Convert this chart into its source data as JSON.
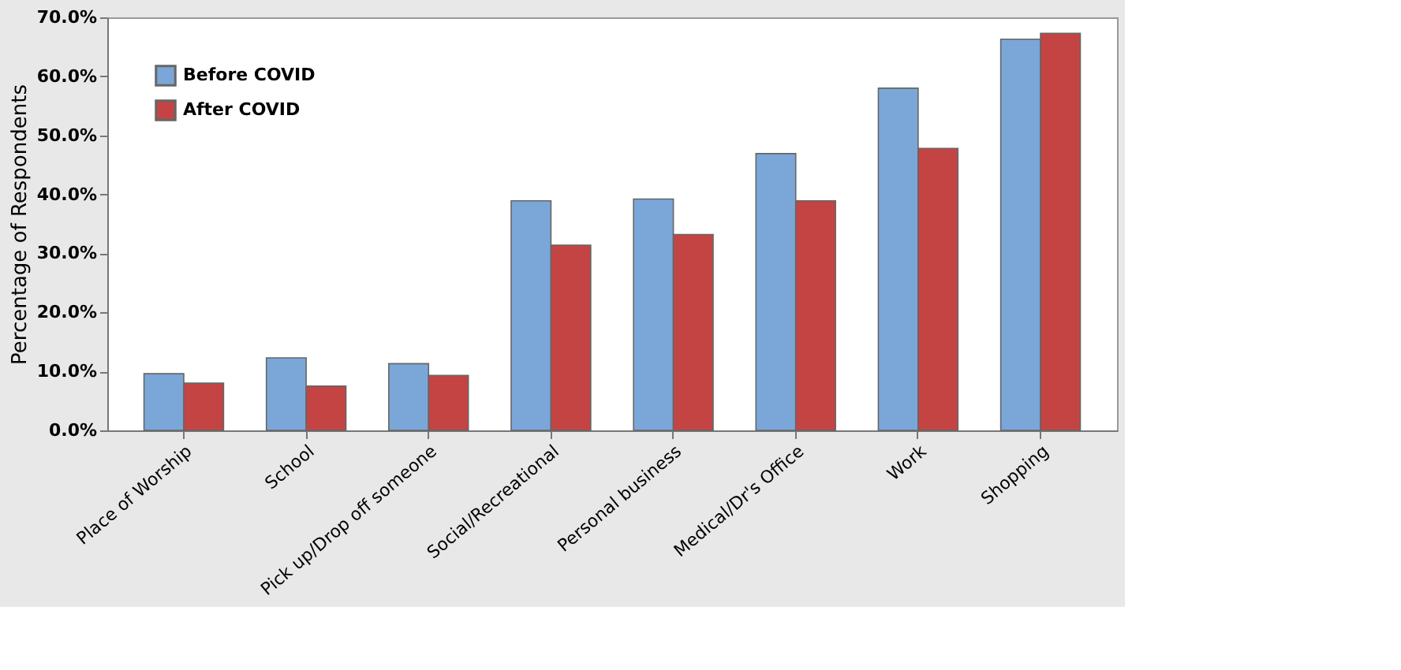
{
  "chart_data": {
    "type": "bar",
    "ylabel": "Percentage of Respondents",
    "categories": [
      "Place of Worship",
      "School",
      "Pick up/Drop off someone",
      "Social/Recreational",
      "Personal business",
      "Medical/Dr's Office",
      "Work",
      "Shopping"
    ],
    "series": [
      {
        "name": "Before COVID",
        "color": "#7ba7d8",
        "values": [
          9.6,
          12.3,
          11.3,
          38.9,
          39.2,
          46.9,
          58.0,
          66.3
        ]
      },
      {
        "name": "After COVID",
        "color": "#c44444",
        "values": [
          8.0,
          7.5,
          9.3,
          31.4,
          33.2,
          38.9,
          47.8,
          67.3
        ]
      }
    ],
    "ylim": [
      0,
      70
    ],
    "yticks": [
      {
        "value": 0,
        "label": "0.0%"
      },
      {
        "value": 10,
        "label": "10.0%"
      },
      {
        "value": 20,
        "label": "20.0%"
      },
      {
        "value": 30,
        "label": "30.0%"
      },
      {
        "value": 40,
        "label": "40.0%"
      },
      {
        "value": 50,
        "label": "50.0%"
      },
      {
        "value": 60,
        "label": "60.0%"
      },
      {
        "value": 70,
        "label": "70.0%"
      }
    ],
    "legend": "top left",
    "grid": false
  }
}
